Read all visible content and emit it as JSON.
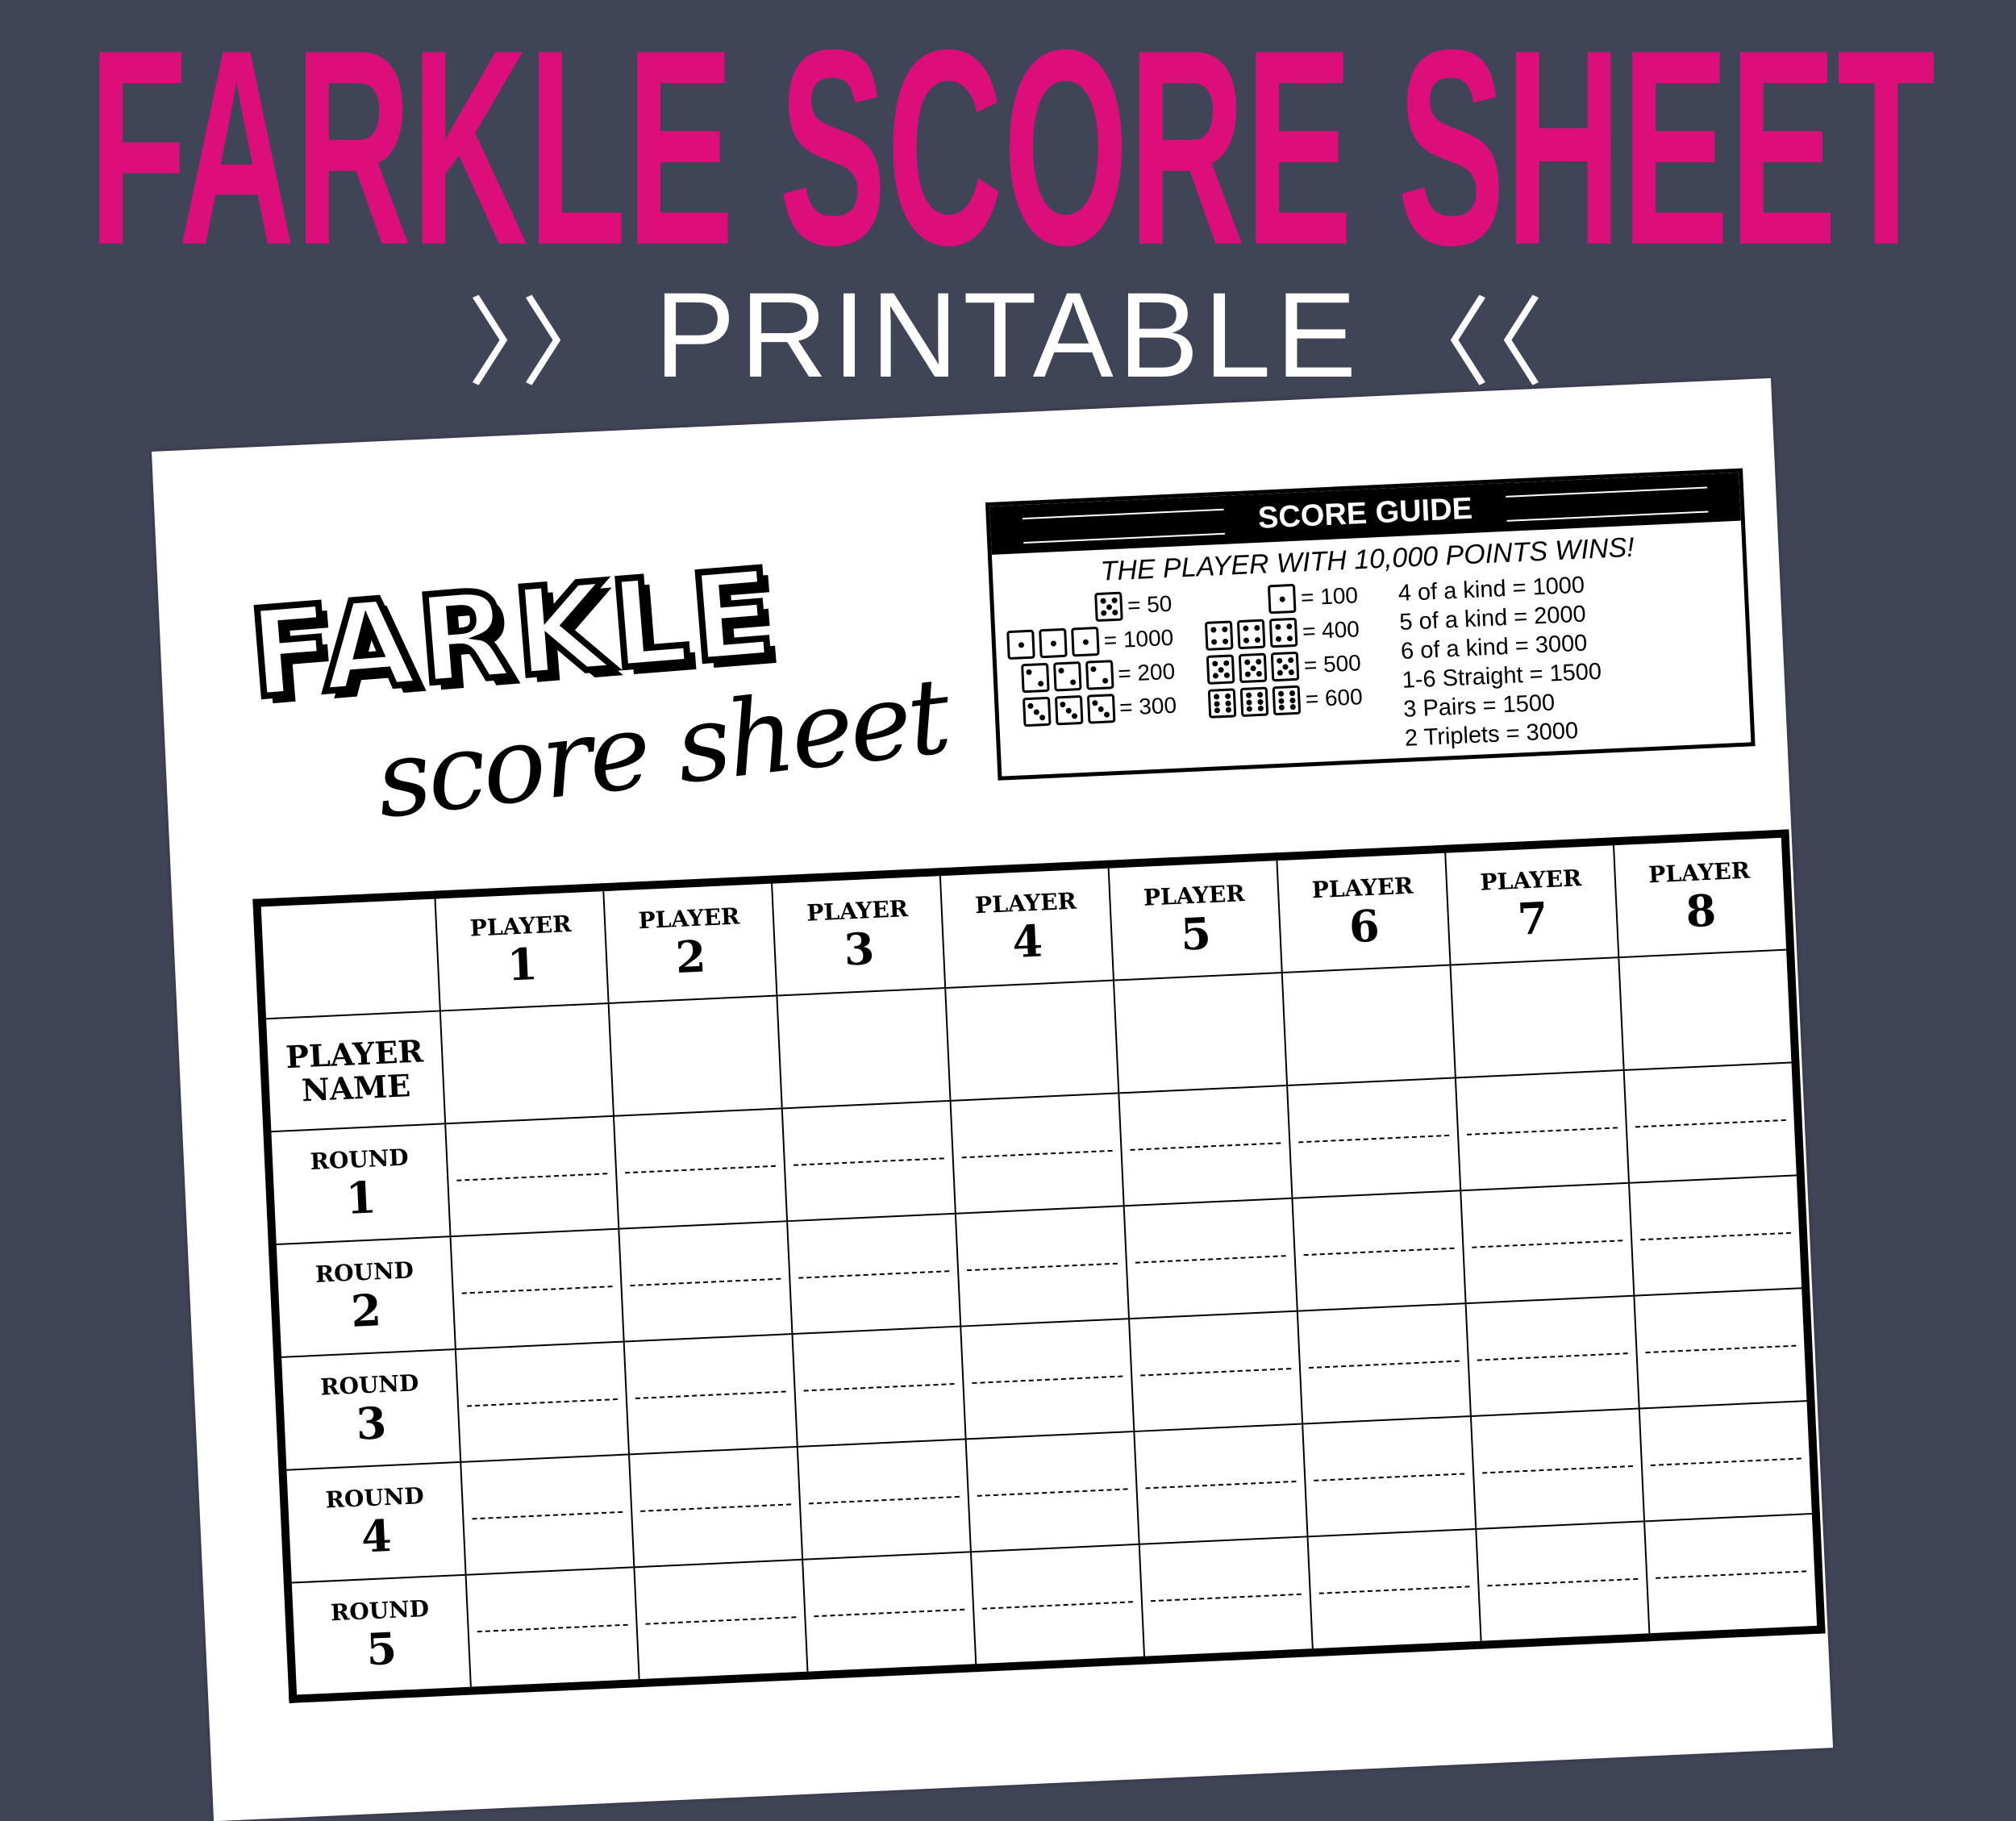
{
  "header": {
    "title": "FARKLE SCORE SHEET",
    "subtitle": "PRINTABLE",
    "chevron_left": "〉〉",
    "chevron_right": "〈〈"
  },
  "colors": {
    "background": "#404457",
    "title": "#dc0f7a",
    "subtitle": "#ffffff"
  },
  "sheet": {
    "logo": "FARKLE",
    "logo_script": "score sheet",
    "guide": {
      "title": "SCORE GUIDE",
      "subtitle": "THE PLAYER WITH 10,000 POINTS WINS!",
      "left": [
        {
          "dice": [
            5
          ],
          "value": "= 50"
        },
        {
          "dice": [
            1,
            1,
            1
          ],
          "value": "= 1000"
        },
        {
          "dice": [
            2,
            2,
            2
          ],
          "value": "= 200"
        },
        {
          "dice": [
            3,
            3,
            3
          ],
          "value": "= 300"
        }
      ],
      "middle": [
        {
          "dice": [
            1
          ],
          "value": "= 100"
        },
        {
          "dice": [
            4,
            4,
            4
          ],
          "value": "= 400"
        },
        {
          "dice": [
            5,
            5,
            5
          ],
          "value": "= 500"
        },
        {
          "dice": [
            6,
            6,
            6
          ],
          "value": "= 600"
        }
      ],
      "rules": [
        "4 of a kind = 1000",
        "5 of a kind = 2000",
        "6 of a kind = 3000",
        "1-6 Straight = 1500",
        "3 Pairs = 1500",
        "2 Triplets = 3000"
      ]
    },
    "table": {
      "player_label": "PLAYER",
      "players": [
        "1",
        "2",
        "3",
        "4",
        "5",
        "6",
        "7",
        "8"
      ],
      "name_label_1": "PLAYER",
      "name_label_2": "NAME",
      "round_label": "ROUND",
      "rounds": [
        "1",
        "2",
        "3",
        "4",
        "5"
      ]
    }
  }
}
